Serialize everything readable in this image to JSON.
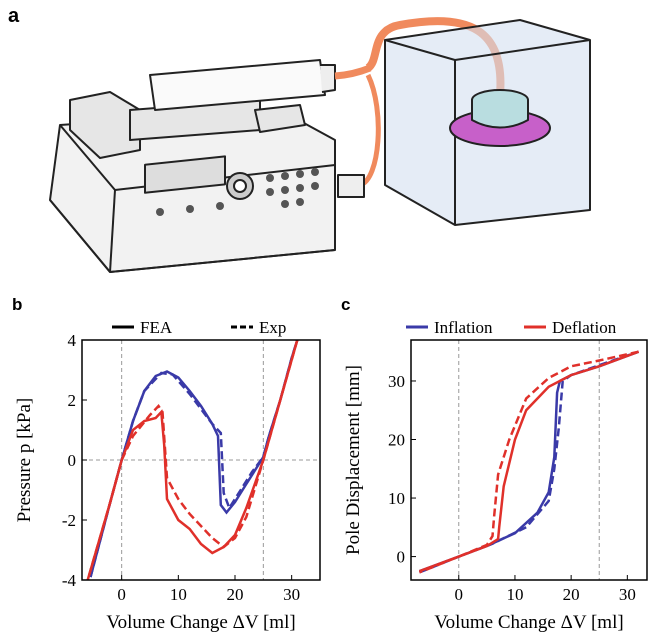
{
  "illustration": {
    "panel": "a"
  },
  "chart_data": [
    {
      "type": "line",
      "panel": "b",
      "xlabel": "Volume Change ΔV [ml]",
      "ylabel": "Pressure p [kPa]",
      "xlim": [
        -7,
        35
      ],
      "ylim": [
        -4,
        4
      ],
      "xticks": [
        0,
        10,
        20,
        30
      ],
      "yticks": [
        -4,
        -2,
        0,
        2,
        4
      ],
      "ref_x": [
        0,
        25
      ],
      "ref_y": [
        0
      ],
      "legend": [
        {
          "name": "FEA",
          "color": "#000000",
          "dash": false
        },
        {
          "name": "Exp",
          "color": "#000000",
          "dash": true
        }
      ],
      "series": [
        {
          "color": "#3a3aa8",
          "dash": false,
          "x": [
            -5.5,
            -2,
            0,
            2,
            4,
            6,
            8,
            10,
            12,
            14,
            16,
            17,
            17.5,
            18.5,
            20,
            22,
            24,
            25,
            26,
            28,
            30,
            31
          ],
          "values": [
            -3.9,
            -1.4,
            0,
            1.3,
            2.3,
            2.8,
            2.95,
            2.75,
            2.3,
            1.8,
            1.2,
            0.8,
            -1.5,
            -1.75,
            -1.4,
            -0.8,
            -0.2,
            0.1,
            0.8,
            2,
            3.4,
            4
          ]
        },
        {
          "color": "#3a3aa8",
          "dash": true,
          "x": [
            -5.5,
            -2,
            0,
            2,
            4,
            7,
            9,
            12,
            14,
            16,
            17.5,
            18,
            19,
            21,
            23,
            25,
            26,
            28,
            30,
            31
          ],
          "values": [
            -3.9,
            -1.4,
            0,
            1.3,
            2.3,
            2.9,
            2.85,
            2.2,
            1.7,
            1.2,
            0.9,
            -1.1,
            -1.6,
            -1,
            -0.4,
            0.1,
            0.8,
            2,
            3.4,
            4
          ]
        },
        {
          "color": "#e0302a",
          "dash": false,
          "x": [
            31,
            28,
            25,
            22,
            20,
            18,
            16,
            14,
            12,
            10,
            8,
            7.5,
            7,
            6,
            4,
            2,
            0,
            -2,
            -6
          ],
          "values": [
            4,
            2,
            0,
            -1.6,
            -2.5,
            -2.9,
            -3.1,
            -2.8,
            -2.3,
            -2,
            -1.3,
            0.5,
            1.6,
            1.4,
            1.3,
            1,
            0,
            -1.4,
            -4
          ]
        },
        {
          "color": "#e0302a",
          "dash": true,
          "x": [
            31,
            28,
            25,
            22,
            20,
            18,
            16,
            14,
            12,
            10,
            8,
            7.2,
            6.5,
            5,
            2,
            0,
            -2,
            -6
          ],
          "values": [
            4,
            2,
            0,
            -1.9,
            -2.6,
            -2.9,
            -2.6,
            -2.2,
            -1.8,
            -1.3,
            -0.6,
            1.6,
            1.8,
            1.5,
            0.8,
            0,
            -1.4,
            -4
          ]
        }
      ]
    },
    {
      "type": "line",
      "panel": "c",
      "xlabel": "Volume Change ΔV [ml]",
      "ylabel": "Pole Displacement [mm]",
      "xlim": [
        -8.5,
        33.5
      ],
      "ylim": [
        -4,
        37
      ],
      "xticks": [
        0,
        10,
        20,
        30
      ],
      "yticks": [
        0,
        10,
        20,
        30
      ],
      "ref_x": [
        0,
        25
      ],
      "ref_y": [],
      "legend": [
        {
          "name": "Inflation",
          "color": "#3a3aa8",
          "dash": false
        },
        {
          "name": "Deflation",
          "color": "#e0302a",
          "dash": false
        }
      ],
      "series": [
        {
          "color": "#3a3aa8",
          "dash": false,
          "x": [
            -7,
            0,
            5,
            10,
            14,
            16,
            17,
            17.5,
            18,
            20,
            25,
            32
          ],
          "values": [
            -2.5,
            0,
            1.8,
            4,
            7.5,
            11,
            17,
            28,
            30,
            31,
            32.5,
            35
          ]
        },
        {
          "color": "#3a3aa8",
          "dash": true,
          "x": [
            -7,
            0,
            6,
            12,
            16,
            17,
            17.8,
            18.5,
            20,
            25,
            32
          ],
          "values": [
            -2.7,
            0,
            2.2,
            5,
            9.5,
            15,
            22,
            30,
            31,
            32.7,
            35
          ]
        },
        {
          "color": "#e0302a",
          "dash": false,
          "x": [
            32,
            25,
            20,
            16,
            12,
            10,
            8,
            7.2,
            7,
            5,
            0,
            -7
          ],
          "values": [
            35,
            32.5,
            31,
            29,
            25,
            20,
            12,
            5,
            3,
            1.8,
            0,
            -2.5
          ]
        },
        {
          "color": "#e0302a",
          "dash": true,
          "x": [
            32,
            25,
            20,
            16,
            12,
            9,
            7,
            6.3,
            6,
            5,
            0,
            -7
          ],
          "values": [
            35,
            33.5,
            32.5,
            30.5,
            27,
            20,
            14,
            7,
            3.5,
            2,
            0,
            -2.7
          ]
        }
      ]
    }
  ]
}
